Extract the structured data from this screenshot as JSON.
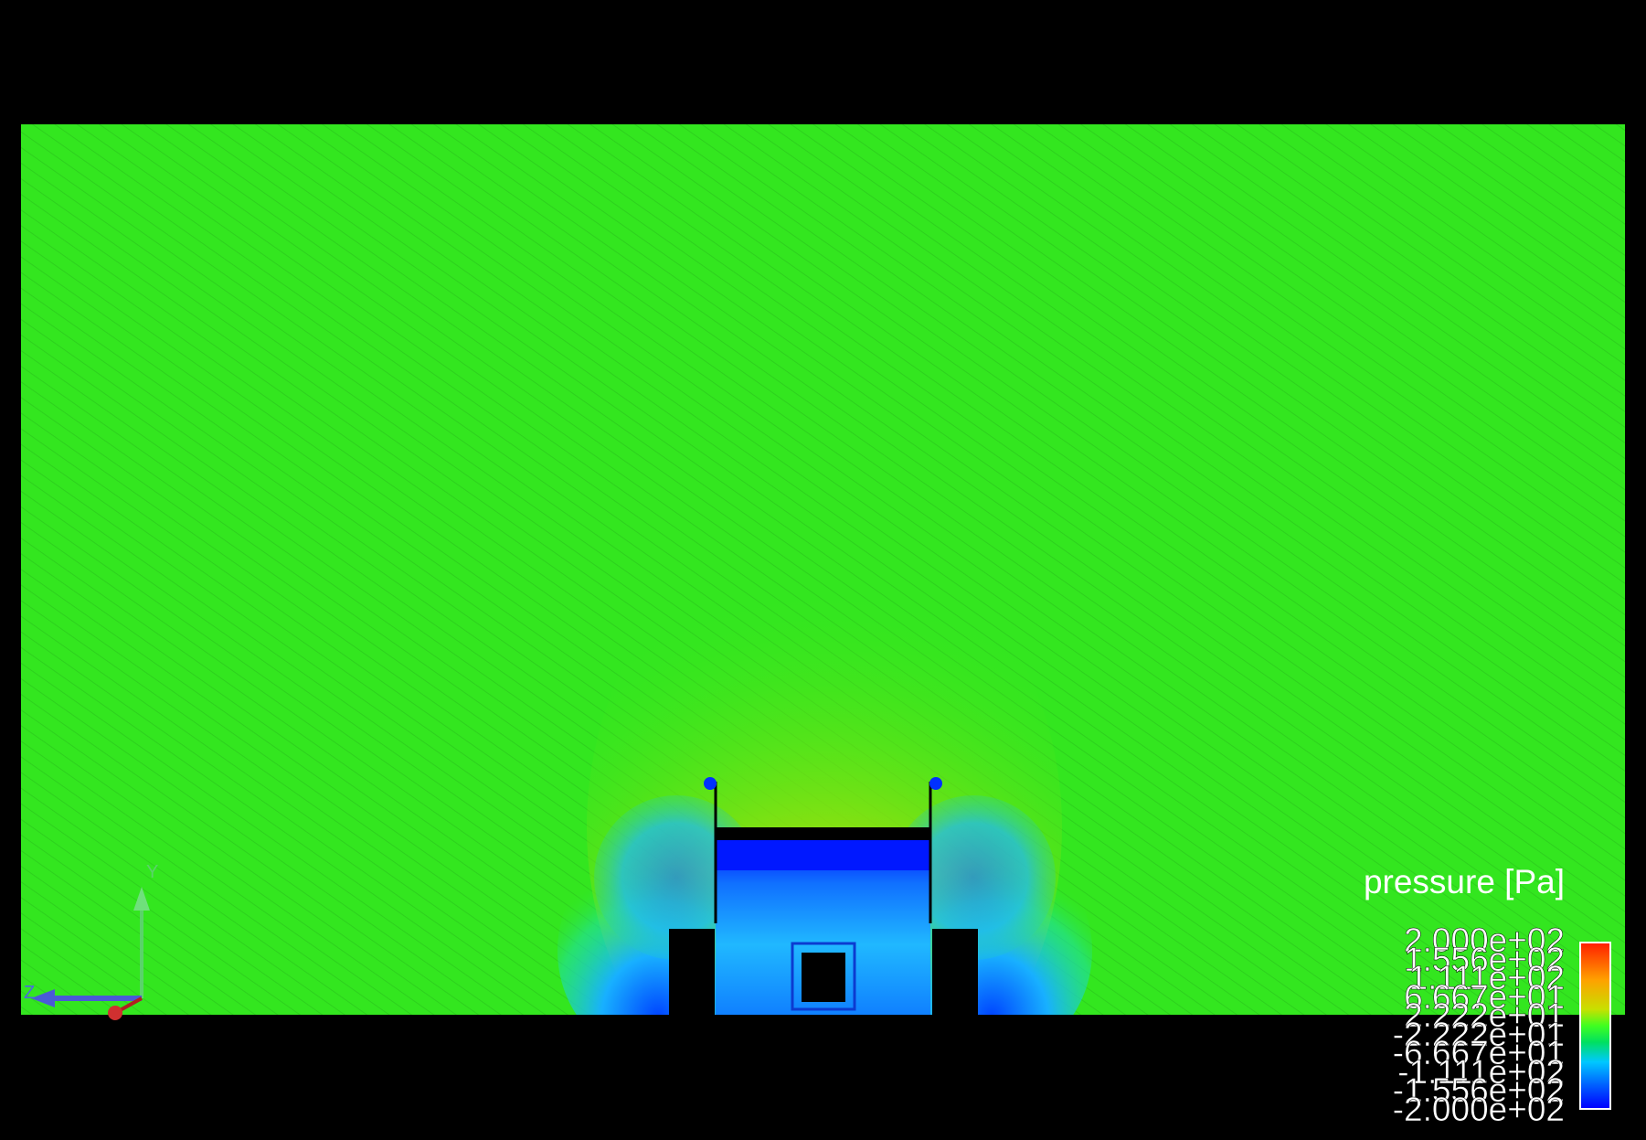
{
  "legend": {
    "title": "pressure [Pa]",
    "labels": [
      "2.000e+02",
      "1.556e+02",
      "1.111e+02",
      "6.667e+01",
      "2.222e+01",
      "-2.222e+01",
      "-6.667e+01",
      "-1.111e+02",
      "-1.556e+02",
      "-2.000e+02"
    ],
    "colors": [
      "#ff2000",
      "#ffa000",
      "#c8e000",
      "#40ff20",
      "#00e060",
      "#00c8ff",
      "#0060ff",
      "#0000ff"
    ]
  },
  "axes": {
    "y_label": "Y",
    "z_label": "Z"
  },
  "colors": {
    "background": "#000000",
    "field": "#33e61f",
    "high_pressure": "#ffa000",
    "low_pressure": "#0033ff",
    "mid_low": "#1ab8ff"
  }
}
